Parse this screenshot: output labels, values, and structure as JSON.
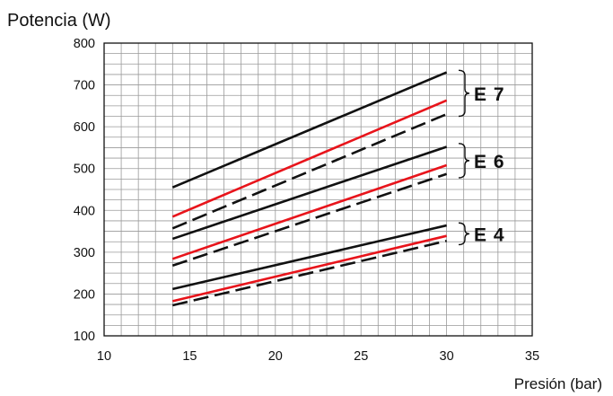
{
  "chart_data": {
    "type": "line",
    "title": "",
    "ylabel": "Potencia (W)",
    "xlabel": "Presión (bar)",
    "xlim": [
      10,
      35
    ],
    "ylim": [
      100,
      800
    ],
    "x_ticks": [
      10,
      15,
      20,
      25,
      30,
      35
    ],
    "y_ticks": [
      100,
      200,
      300,
      400,
      500,
      600,
      700,
      800
    ],
    "grid": true,
    "series": [
      {
        "group": "E7",
        "color": "#111111",
        "style": "solid",
        "x": [
          14,
          30
        ],
        "y": [
          455,
          730
        ]
      },
      {
        "group": "E7",
        "color": "#e8141b",
        "style": "solid",
        "x": [
          14,
          30
        ],
        "y": [
          385,
          663
        ]
      },
      {
        "group": "E7",
        "color": "#111111",
        "style": "dashed",
        "x": [
          14,
          30
        ],
        "y": [
          357,
          630
        ]
      },
      {
        "group": "E6",
        "color": "#111111",
        "style": "solid",
        "x": [
          14,
          30
        ],
        "y": [
          332,
          552
        ]
      },
      {
        "group": "E6",
        "color": "#e8141b",
        "style": "solid",
        "x": [
          14,
          30
        ],
        "y": [
          284,
          508
        ]
      },
      {
        "group": "E6",
        "color": "#111111",
        "style": "dashed",
        "x": [
          14,
          30
        ],
        "y": [
          268,
          487
        ]
      },
      {
        "group": "E4",
        "color": "#111111",
        "style": "solid",
        "x": [
          14,
          30
        ],
        "y": [
          212,
          364
        ]
      },
      {
        "group": "E4",
        "color": "#e8141b",
        "style": "solid",
        "x": [
          14,
          30
        ],
        "y": [
          183,
          339
        ]
      },
      {
        "group": "E4",
        "color": "#111111",
        "style": "dashed",
        "x": [
          14,
          30
        ],
        "y": [
          173,
          327
        ]
      }
    ],
    "groups": [
      {
        "label": "E 7",
        "y_range": [
          625,
          735
        ]
      },
      {
        "label": "E 6",
        "y_range": [
          478,
          560
        ]
      },
      {
        "label": "E 4",
        "y_range": [
          318,
          370
        ]
      }
    ]
  }
}
